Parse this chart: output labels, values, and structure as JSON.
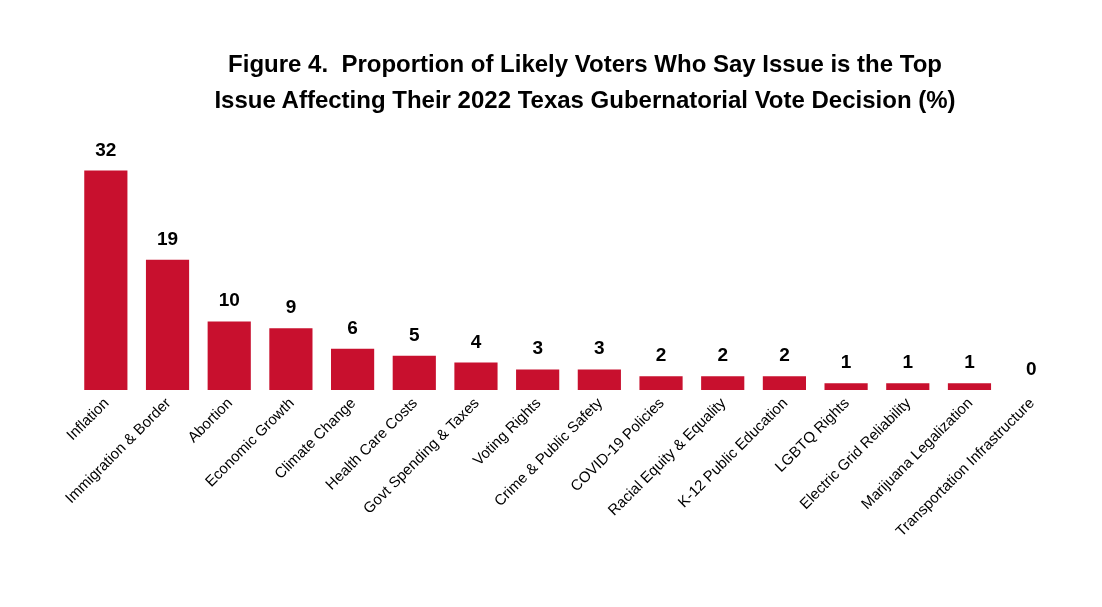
{
  "chart_data": {
    "type": "bar",
    "title": "Figure 4.  Proportion of Likely Voters Who Say Issue is the Top\nIssue Affecting Their 2022 Texas Gubernatorial Vote Decision (%)",
    "categories": [
      "Inflation",
      "Immigration & Border",
      "Abortion",
      "Economic Growth",
      "Climate Change",
      "Health Care Costs",
      "Govt Spending & Taxes",
      "Voting Rights",
      "Crime & Public Safety",
      "COVID-19 Policies",
      "Racial Equity & Equality",
      "K-12 Public Education",
      "LGBTQ Rights",
      "Electric Grid Reliability",
      "Marijuana Legalization",
      "Transportation Infrastructure"
    ],
    "values": [
      32,
      19,
      10,
      9,
      6,
      5,
      4,
      3,
      3,
      2,
      2,
      2,
      1,
      1,
      1,
      0
    ],
    "color": "#c8102e",
    "data_labels": true
  }
}
